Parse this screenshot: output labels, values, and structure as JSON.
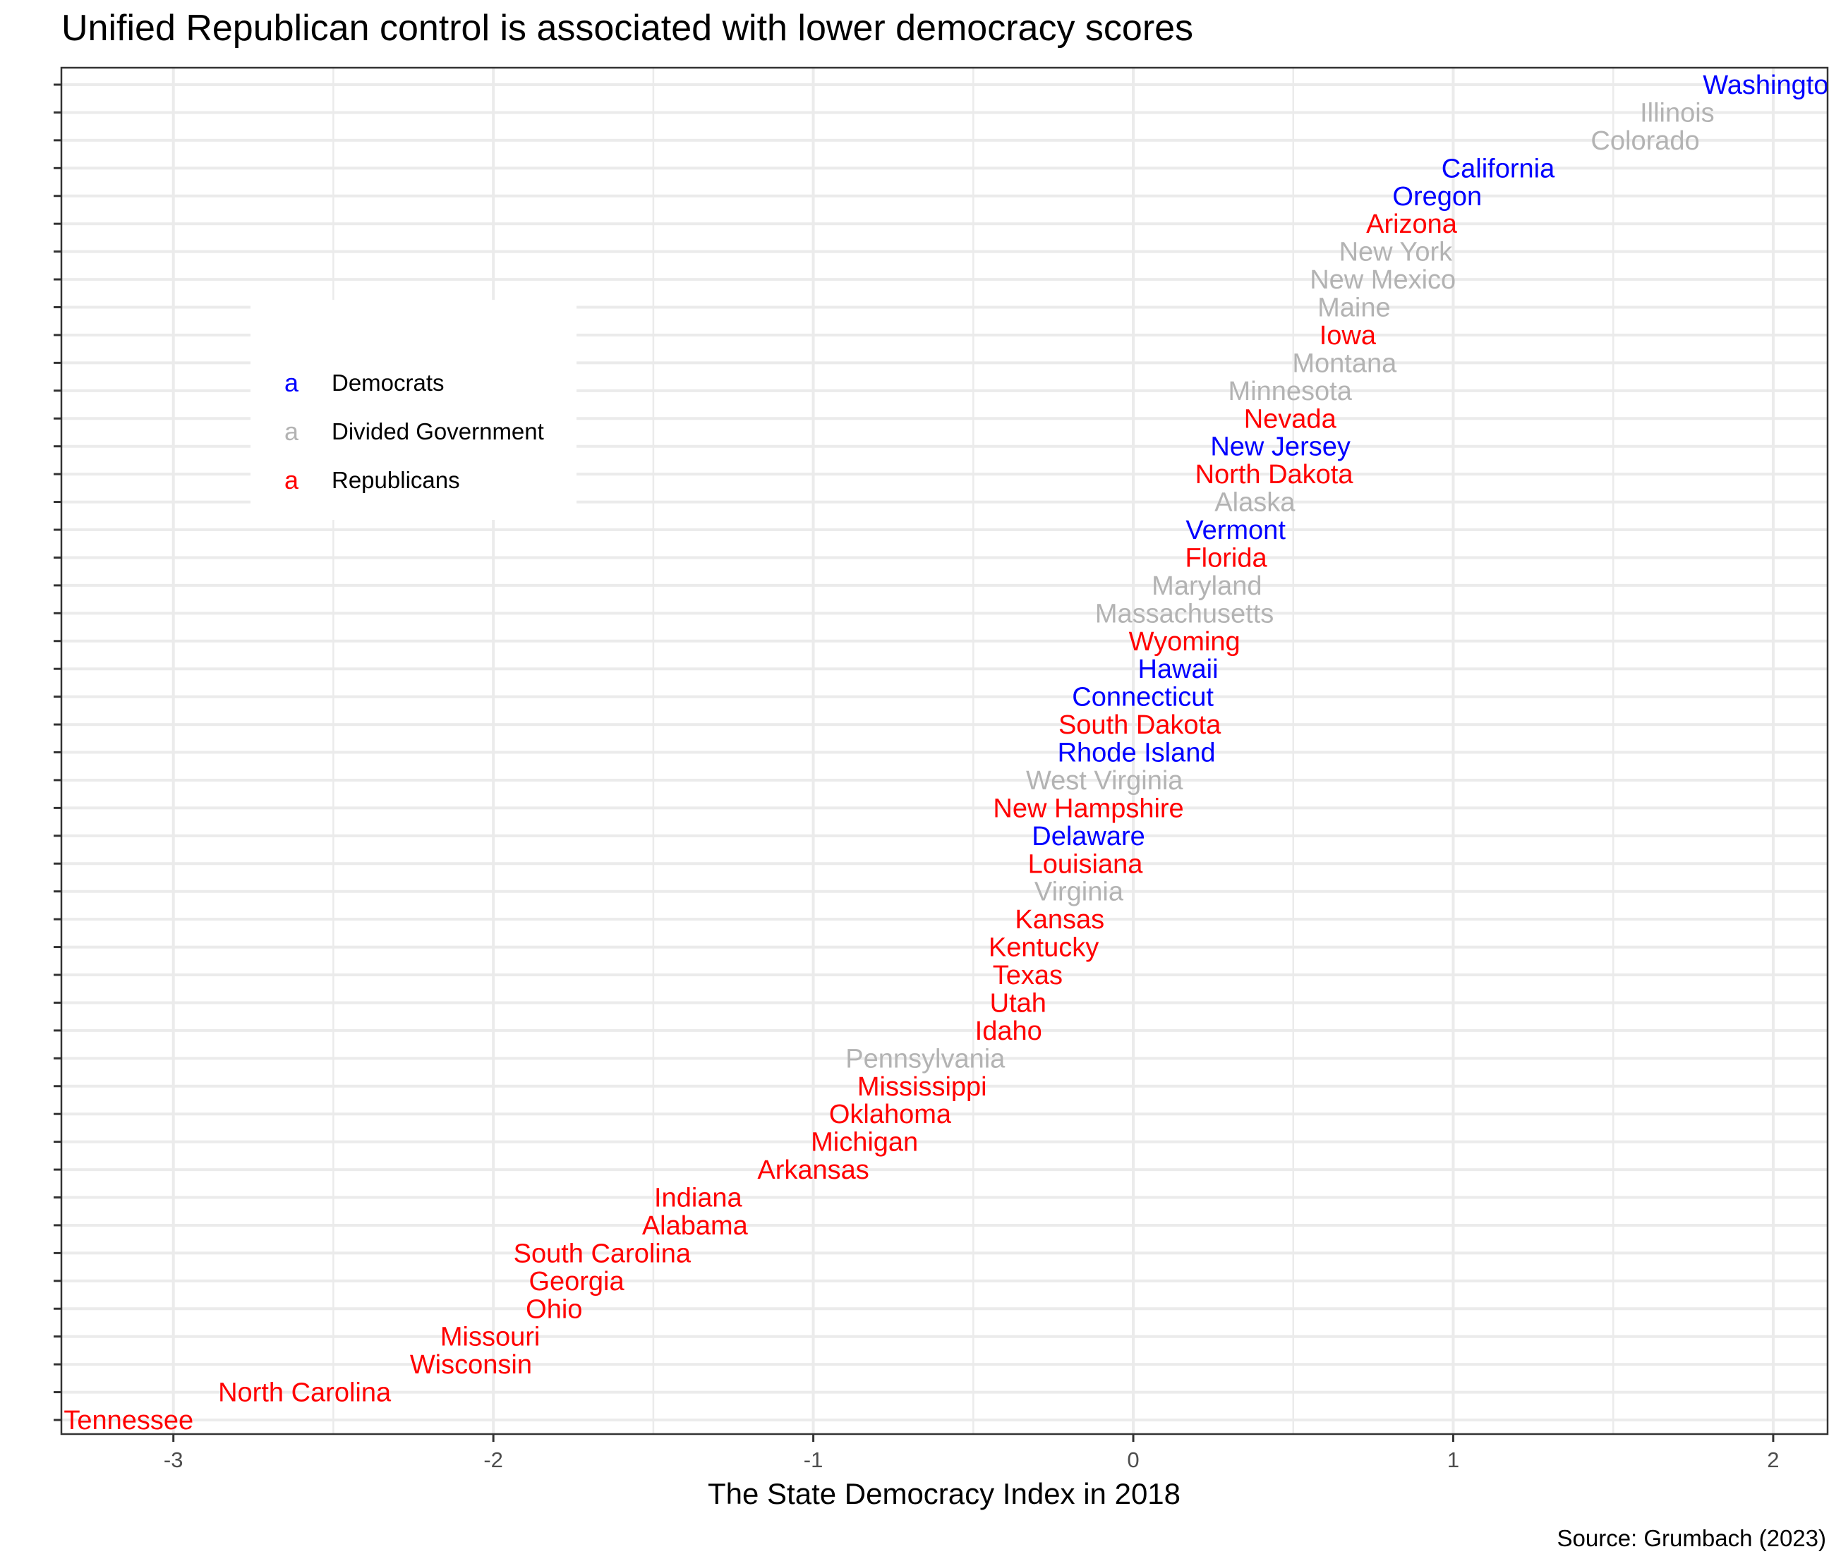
{
  "chart_data": {
    "type": "scatter",
    "title": "Unified Republican control is associated with lower democracy scores",
    "xlabel": "The State Democracy Index in 2018",
    "ylabel": "",
    "caption": "Source: Grumbach (2023)",
    "xlim": [
      -3.35,
      2.17
    ],
    "x_ticks": [
      -3,
      -2,
      -1,
      0,
      1,
      2
    ],
    "x_tick_labels": [
      "-3",
      "-2",
      "-1",
      "0",
      "1",
      "2"
    ],
    "grid": true,
    "legend_position": "top-left",
    "colors": {
      "Democrats": "#0000ff",
      "Divided Government": "#b3b3b3",
      "Republicans": "#ff0000"
    },
    "legend": {
      "key_glyph": "a",
      "entries": [
        "Democrats",
        "Divided Government",
        "Republicans"
      ]
    },
    "points": [
      {
        "state": "Washington",
        "x": 2.0,
        "party": "Democrats"
      },
      {
        "state": "Illinois",
        "x": 1.7,
        "party": "Divided Government"
      },
      {
        "state": "Colorado",
        "x": 1.6,
        "party": "Divided Government"
      },
      {
        "state": "California",
        "x": 1.14,
        "party": "Democrats"
      },
      {
        "state": "Oregon",
        "x": 0.95,
        "party": "Democrats"
      },
      {
        "state": "Arizona",
        "x": 0.87,
        "party": "Republicans"
      },
      {
        "state": "New York",
        "x": 0.82,
        "party": "Divided Government"
      },
      {
        "state": "New Mexico",
        "x": 0.78,
        "party": "Divided Government"
      },
      {
        "state": "Maine",
        "x": 0.69,
        "party": "Divided Government"
      },
      {
        "state": "Iowa",
        "x": 0.67,
        "party": "Republicans"
      },
      {
        "state": "Montana",
        "x": 0.66,
        "party": "Divided Government"
      },
      {
        "state": "Minnesota",
        "x": 0.49,
        "party": "Divided Government"
      },
      {
        "state": "Nevada",
        "x": 0.49,
        "party": "Republicans"
      },
      {
        "state": "New Jersey",
        "x": 0.46,
        "party": "Democrats"
      },
      {
        "state": "North Dakota",
        "x": 0.44,
        "party": "Republicans"
      },
      {
        "state": "Alaska",
        "x": 0.38,
        "party": "Divided Government"
      },
      {
        "state": "Vermont",
        "x": 0.32,
        "party": "Democrats"
      },
      {
        "state": "Florida",
        "x": 0.29,
        "party": "Republicans"
      },
      {
        "state": "Maryland",
        "x": 0.23,
        "party": "Divided Government"
      },
      {
        "state": "Massachusetts",
        "x": 0.16,
        "party": "Divided Government"
      },
      {
        "state": "Wyoming",
        "x": 0.16,
        "party": "Republicans"
      },
      {
        "state": "Hawaii",
        "x": 0.14,
        "party": "Democrats"
      },
      {
        "state": "Connecticut",
        "x": 0.03,
        "party": "Democrats"
      },
      {
        "state": "South Dakota",
        "x": 0.02,
        "party": "Republicans"
      },
      {
        "state": "Rhode Island",
        "x": 0.01,
        "party": "Democrats"
      },
      {
        "state": "West Virginia",
        "x": -0.09,
        "party": "Divided Government"
      },
      {
        "state": "New Hampshire",
        "x": -0.14,
        "party": "Republicans"
      },
      {
        "state": "Delaware",
        "x": -0.14,
        "party": "Democrats"
      },
      {
        "state": "Louisiana",
        "x": -0.15,
        "party": "Republicans"
      },
      {
        "state": "Virginia",
        "x": -0.17,
        "party": "Divided Government"
      },
      {
        "state": "Kansas",
        "x": -0.23,
        "party": "Republicans"
      },
      {
        "state": "Kentucky",
        "x": -0.28,
        "party": "Republicans"
      },
      {
        "state": "Texas",
        "x": -0.33,
        "party": "Republicans"
      },
      {
        "state": "Utah",
        "x": -0.36,
        "party": "Republicans"
      },
      {
        "state": "Idaho",
        "x": -0.39,
        "party": "Republicans"
      },
      {
        "state": "Pennsylvania",
        "x": -0.65,
        "party": "Divided Government"
      },
      {
        "state": "Mississippi",
        "x": -0.66,
        "party": "Republicans"
      },
      {
        "state": "Oklahoma",
        "x": -0.76,
        "party": "Republicans"
      },
      {
        "state": "Michigan",
        "x": -0.84,
        "party": "Republicans"
      },
      {
        "state": "Arkansas",
        "x": -1.0,
        "party": "Republicans"
      },
      {
        "state": "Indiana",
        "x": -1.36,
        "party": "Republicans"
      },
      {
        "state": "Alabama",
        "x": -1.37,
        "party": "Republicans"
      },
      {
        "state": "South Carolina",
        "x": -1.66,
        "party": "Republicans"
      },
      {
        "state": "Georgia",
        "x": -1.74,
        "party": "Republicans"
      },
      {
        "state": "Ohio",
        "x": -1.81,
        "party": "Republicans"
      },
      {
        "state": "Missouri",
        "x": -2.01,
        "party": "Republicans"
      },
      {
        "state": "Wisconsin",
        "x": -2.07,
        "party": "Republicans"
      },
      {
        "state": "North Carolina",
        "x": -2.59,
        "party": "Republicans"
      },
      {
        "state": "Tennessee",
        "x": -3.14,
        "party": "Republicans"
      }
    ]
  }
}
